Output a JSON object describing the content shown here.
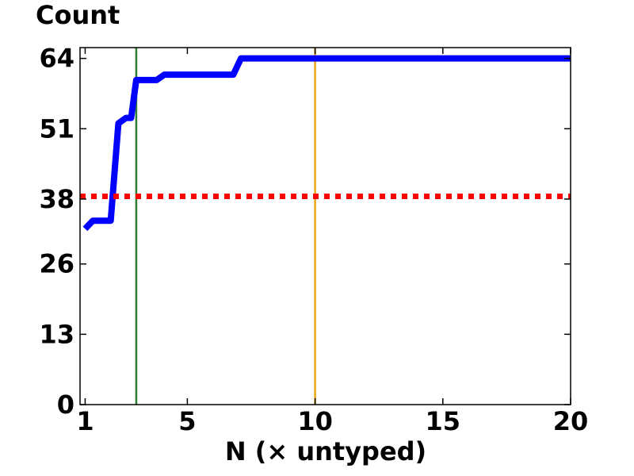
{
  "chart_data": {
    "type": "line",
    "title": "",
    "ylabel": "Count",
    "xlabel": "N  (× untyped)",
    "xlim": [
      0.8,
      20
    ],
    "ylim": [
      0,
      66
    ],
    "xticks": [
      1,
      5,
      10,
      15,
      20
    ],
    "xtick_labels": [
      "1",
      "5",
      "10",
      "15",
      "20"
    ],
    "yticks": [
      0,
      13,
      26,
      38,
      51,
      64
    ],
    "ytick_labels": [
      "0",
      "13",
      "26",
      "38",
      "51",
      "64"
    ],
    "grid": false,
    "series": [
      {
        "style": "solid",
        "color": "#0000ff",
        "x": [
          1.0,
          1.3,
          1.6,
          2.0,
          2.3,
          2.6,
          2.8,
          3.0,
          3.2,
          3.8,
          4.1,
          4.4,
          5.0,
          6.0,
          6.8,
          7.1,
          7.5,
          10.0,
          15.0,
          20.0
        ],
        "y": [
          32.5,
          34.0,
          34.0,
          34.0,
          52.0,
          53.0,
          53.0,
          60.0,
          60.0,
          60.0,
          61.0,
          61.0,
          61.0,
          61.0,
          61.0,
          64.0,
          64.0,
          64.0,
          64.0,
          64.0
        ]
      },
      {
        "style": "dotted",
        "color": "#ff0000",
        "x": [
          0.8,
          20.0
        ],
        "y": [
          38.5,
          38.5
        ]
      }
    ],
    "vlines": [
      {
        "x": 3.0,
        "color": "#2e7d32"
      },
      {
        "x": 10.0,
        "color": "#e6a817"
      }
    ]
  }
}
